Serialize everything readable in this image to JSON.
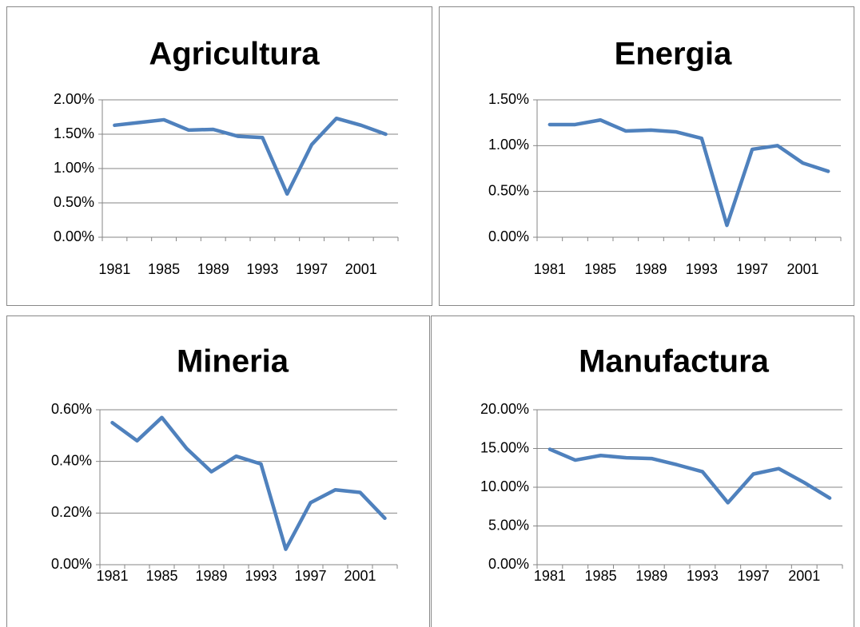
{
  "chart_data": [
    {
      "type": "line",
      "title": "Agricultura",
      "categories": [
        "1981",
        null,
        "1985",
        null,
        "1989",
        null,
        "1993",
        null,
        "1997",
        null,
        "2001",
        null
      ],
      "values": [
        1.63,
        1.67,
        1.71,
        1.56,
        1.57,
        1.47,
        1.45,
        0.63,
        1.35,
        1.73,
        1.63,
        1.5
      ],
      "color": "#4f81bd",
      "ylim": [
        0,
        2
      ],
      "yticks": [
        {
          "value": 0,
          "label": "0.00%"
        },
        {
          "value": 0.5,
          "label": "0.50%"
        },
        {
          "value": 1,
          "label": "1.00%"
        },
        {
          "value": 1.5,
          "label": "1.50%"
        },
        {
          "value": 2,
          "label": "2.00%"
        }
      ],
      "grid": true
    },
    {
      "type": "line",
      "title": "Energia",
      "categories": [
        "1981",
        null,
        "1985",
        null,
        "1989",
        null,
        "1993",
        null,
        "1997",
        null,
        "2001",
        null
      ],
      "values": [
        1.23,
        1.23,
        1.28,
        1.16,
        1.17,
        1.15,
        1.08,
        0.13,
        0.96,
        1.0,
        0.81,
        0.72
      ],
      "color": "#4f81bd",
      "ylim": [
        0,
        1.5
      ],
      "yticks": [
        {
          "value": 0,
          "label": "0.00%"
        },
        {
          "value": 0.5,
          "label": "0.50%"
        },
        {
          "value": 1,
          "label": "1.00%"
        },
        {
          "value": 1.5,
          "label": "1.50%"
        }
      ],
      "grid": true
    },
    {
      "type": "line",
      "title": "Mineria",
      "categories": [
        "1981",
        null,
        "1985",
        null,
        "1989",
        null,
        "1993",
        null,
        "1997",
        null,
        "2001",
        null
      ],
      "values": [
        0.55,
        0.48,
        0.57,
        0.45,
        0.36,
        0.42,
        0.39,
        0.06,
        0.24,
        0.29,
        0.28,
        0.18
      ],
      "color": "#4f81bd",
      "ylim": [
        0,
        0.6
      ],
      "yticks": [
        {
          "value": 0,
          "label": "0.00%"
        },
        {
          "value": 0.2,
          "label": "0.20%"
        },
        {
          "value": 0.4,
          "label": "0.40%"
        },
        {
          "value": 0.6,
          "label": "0.60%"
        }
      ],
      "grid": true
    },
    {
      "type": "line",
      "title": "Manufactura",
      "categories": [
        "1981",
        null,
        "1985",
        null,
        "1989",
        null,
        "1993",
        null,
        "1997",
        null,
        "2001",
        null
      ],
      "values": [
        14.9,
        13.5,
        14.1,
        13.8,
        13.7,
        12.9,
        12.0,
        8.0,
        11.7,
        12.4,
        10.6,
        8.6
      ],
      "color": "#4f81bd",
      "ylim": [
        0,
        20
      ],
      "yticks": [
        {
          "value": 0,
          "label": "0.00%"
        },
        {
          "value": 5,
          "label": "5.00%"
        },
        {
          "value": 10,
          "label": "10.00%"
        },
        {
          "value": 15,
          "label": "15.00%"
        },
        {
          "value": 20,
          "label": "20.00%"
        }
      ],
      "grid": true
    }
  ]
}
